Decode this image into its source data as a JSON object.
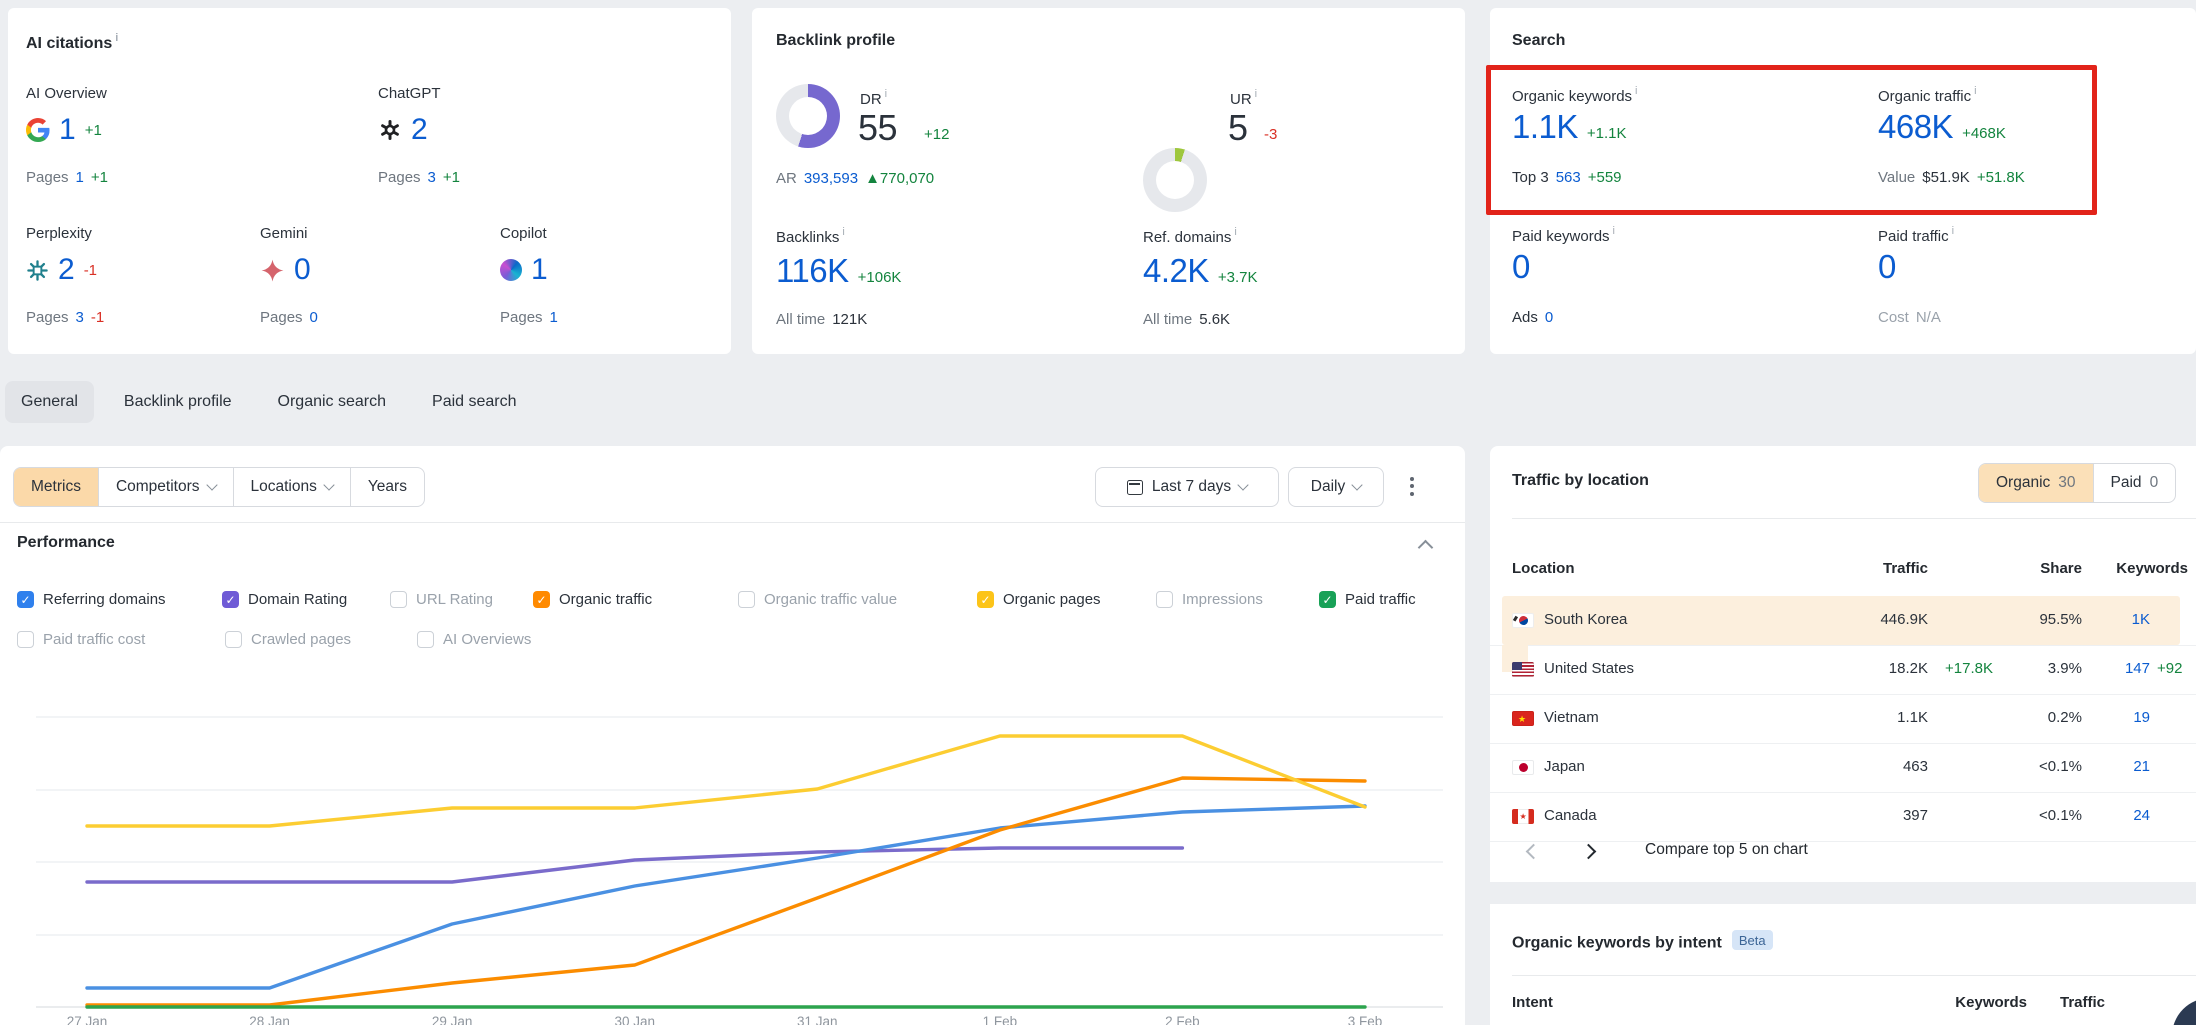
{
  "ai_citations": {
    "title": "AI citations",
    "items": [
      {
        "name": "AI Overview",
        "icon": "google",
        "value": "1",
        "delta": "+1",
        "delta_tone": "green",
        "pages_label": "Pages",
        "pages_value": "1",
        "pages_delta": "+1",
        "pages_delta_tone": "green"
      },
      {
        "name": "ChatGPT",
        "icon": "chatgpt",
        "value": "2",
        "delta": "",
        "delta_tone": "",
        "pages_label": "Pages",
        "pages_value": "3",
        "pages_delta": "+1",
        "pages_delta_tone": "green"
      },
      {
        "name": "Perplexity",
        "icon": "perplexity",
        "value": "2",
        "delta": "-1",
        "delta_tone": "red",
        "pages_label": "Pages",
        "pages_value": "3",
        "pages_delta": "-1",
        "pages_delta_tone": "red"
      },
      {
        "name": "Gemini",
        "icon": "gemini",
        "value": "0",
        "delta": "",
        "delta_tone": "",
        "pages_label": "Pages",
        "pages_value": "0",
        "pages_delta": "",
        "pages_delta_tone": ""
      },
      {
        "name": "Copilot",
        "icon": "copilot",
        "value": "1",
        "delta": "",
        "delta_tone": "",
        "pages_label": "Pages",
        "pages_value": "1",
        "pages_delta": "",
        "pages_delta_tone": ""
      }
    ]
  },
  "backlink_profile": {
    "title": "Backlink profile",
    "dr": {
      "label": "DR",
      "value": "55",
      "delta": "+12",
      "percent": 55,
      "color": "#7668cf"
    },
    "ur": {
      "label": "UR",
      "value": "5",
      "delta": "-3",
      "percent": 5,
      "color": "#9ec73d"
    },
    "ar": {
      "label": "AR",
      "value": "393,593",
      "delta": "▲770,070"
    },
    "backlinks": {
      "label": "Backlinks",
      "value": "116K",
      "delta": "+106K",
      "sub_label": "All time",
      "sub_value": "121K"
    },
    "ref_domains": {
      "label": "Ref. domains",
      "value": "4.2K",
      "delta": "+3.7K",
      "sub_label": "All time",
      "sub_value": "5.6K"
    }
  },
  "search": {
    "title": "Search",
    "metrics": [
      {
        "label": "Organic keywords",
        "value": "1.1K",
        "delta": "+1.1K",
        "sub": [
          {
            "text": "Top 3",
            "tone": "dark"
          },
          {
            "text": "563",
            "tone": "blue"
          },
          {
            "text": "+559",
            "tone": "green"
          }
        ]
      },
      {
        "label": "Organic traffic",
        "value": "468K",
        "delta": "+468K",
        "sub": [
          {
            "text": "Value",
            "tone": "gray"
          },
          {
            "text": "$51.9K",
            "tone": "dark"
          },
          {
            "text": "+51.8K",
            "tone": "green"
          }
        ]
      },
      {
        "label": "Paid keywords",
        "value": "0",
        "delta": "",
        "sub": [
          {
            "text": "Ads",
            "tone": "dark"
          },
          {
            "text": "0",
            "tone": "blue"
          }
        ]
      },
      {
        "label": "Paid traffic",
        "value": "0",
        "delta": "",
        "sub": [
          {
            "text": "Cost",
            "tone": "lightgray"
          },
          {
            "text": "N/A",
            "tone": "lightgray"
          }
        ]
      }
    ],
    "highlight_box_color": "#e2231a"
  },
  "tabs": [
    {
      "label": "General",
      "active": true
    },
    {
      "label": "Backlink profile",
      "active": false
    },
    {
      "label": "Organic search",
      "active": false
    },
    {
      "label": "Paid search",
      "active": false
    }
  ],
  "toolbar": {
    "metrics": "Metrics",
    "competitors": "Competitors",
    "locations": "Locations",
    "years": "Years",
    "date_range": "Last 7 days",
    "granularity": "Daily"
  },
  "performance": {
    "title": "Performance",
    "checkboxes": [
      {
        "label": "Referring domains",
        "checked": true,
        "color": "#2f80ed"
      },
      {
        "label": "Domain Rating",
        "checked": true,
        "color": "#6f5bd6"
      },
      {
        "label": "URL Rating",
        "checked": false,
        "color": ""
      },
      {
        "label": "Organic traffic",
        "checked": true,
        "color": "#ff8a00"
      },
      {
        "label": "Organic traffic value",
        "checked": false,
        "color": ""
      },
      {
        "label": "Organic pages",
        "checked": true,
        "color": "#fcc419"
      },
      {
        "label": "Impressions",
        "checked": false,
        "color": ""
      },
      {
        "label": "Paid traffic",
        "checked": true,
        "color": "#18a157"
      },
      {
        "label": "Paid traffic cost",
        "checked": false,
        "color": ""
      },
      {
        "label": "Crawled pages",
        "checked": false,
        "color": ""
      },
      {
        "label": "AI Overviews",
        "checked": false,
        "color": ""
      }
    ]
  },
  "chart_data": {
    "type": "line",
    "x": [
      "27 Jan",
      "28 Jan",
      "29 Jan",
      "30 Jan",
      "31 Jan",
      "1 Feb",
      "2 Feb",
      "3 Feb"
    ],
    "y_axis_labels": "none (unlabeled axis, relative units)",
    "ylim": [
      0,
      362
    ],
    "gridline_values": [
      0,
      72,
      145,
      217,
      290
    ],
    "series": [
      {
        "name": "Domain Rating",
        "color": "#7a6bcb",
        "values": [
          125,
          125,
          125,
          147,
          155,
          159,
          159,
          null
        ]
      },
      {
        "name": "Referring domains",
        "color": "#4a90e2",
        "values": [
          19,
          19,
          83,
          121,
          149,
          179,
          195,
          201
        ]
      },
      {
        "name": "Organic traffic",
        "color": "#fb8c00",
        "values": [
          2,
          2,
          24,
          42,
          109,
          177,
          229,
          226
        ]
      },
      {
        "name": "Organic pages",
        "color": "#fccd32",
        "values": [
          181,
          181,
          199,
          199,
          218,
          271,
          271,
          200
        ]
      },
      {
        "name": "Paid traffic",
        "color": "#2da44e",
        "values": [
          0,
          0,
          0,
          0,
          0,
          0,
          0,
          0
        ]
      }
    ]
  },
  "traffic_by_location": {
    "title": "Traffic by location",
    "toggle": {
      "organic_label": "Organic",
      "organic_count": "30",
      "paid_label": "Paid",
      "paid_count": "0"
    },
    "columns": [
      "Location",
      "Traffic",
      "Share",
      "Keywords"
    ],
    "rows": [
      {
        "location": "South Korea",
        "flag": "kr",
        "traffic": "446.9K",
        "traffic_delta": "",
        "share": "95.5%",
        "keywords": "1K",
        "keywords_delta": "",
        "highlighted": true
      },
      {
        "location": "United States",
        "flag": "us",
        "traffic": "18.2K",
        "traffic_delta": "+17.8K",
        "share": "3.9%",
        "keywords": "147",
        "keywords_delta": "+92",
        "highlighted": false
      },
      {
        "location": "Vietnam",
        "flag": "vn",
        "traffic": "1.1K",
        "traffic_delta": "",
        "share": "0.2%",
        "keywords": "19",
        "keywords_delta": "",
        "highlighted": false
      },
      {
        "location": "Japan",
        "flag": "jp",
        "traffic": "463",
        "traffic_delta": "",
        "share": "<0.1%",
        "keywords": "21",
        "keywords_delta": "",
        "highlighted": false
      },
      {
        "location": "Canada",
        "flag": "ca",
        "traffic": "397",
        "traffic_delta": "",
        "share": "<0.1%",
        "keywords": "24",
        "keywords_delta": "",
        "highlighted": false
      }
    ],
    "compare_label": "Compare top 5 on chart"
  },
  "organic_keywords_by_intent": {
    "title": "Organic keywords by intent",
    "badge": "Beta",
    "columns": [
      "Intent",
      "Keywords",
      "Traffic"
    ]
  }
}
